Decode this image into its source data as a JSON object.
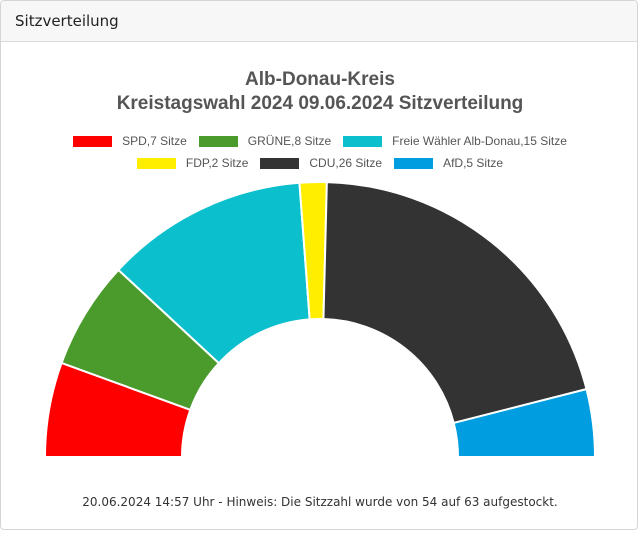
{
  "panel": {
    "title": "Sitzverteilung"
  },
  "chart_data": {
    "type": "pie",
    "variant": "semicircle-parliament",
    "title_line1": "Alb-Donau-Kreis",
    "title_line2": "Kreistagswahl 2024 09.06.2024 Sitzverteilung",
    "legend_position": "top",
    "series": [
      {
        "name": "SPD",
        "label": "SPD,7 Sitze",
        "value": 7,
        "color": "#ff0000"
      },
      {
        "name": "GRÜNE",
        "label": "GRÜNE,8 Sitze",
        "value": 8,
        "color": "#4a9a2c"
      },
      {
        "name": "Freie Wähler Alb-Donau",
        "label": "Freie Wähler Alb-Donau,15 Sitze",
        "value": 15,
        "color": "#0bbfcd"
      },
      {
        "name": "FDP",
        "label": "FDP,2 Sitze",
        "value": 2,
        "color": "#ffee00"
      },
      {
        "name": "CDU",
        "label": "CDU,26 Sitze",
        "value": 26,
        "color": "#333333"
      },
      {
        "name": "AfD",
        "label": "AfD,5 Sitze",
        "value": 5,
        "color": "#009ee0"
      }
    ],
    "total": 63
  },
  "footer": {
    "note": "20.06.2024 14:57 Uhr - Hinweis: Die Sitzzahl wurde von 54 auf 63 aufgestockt."
  }
}
